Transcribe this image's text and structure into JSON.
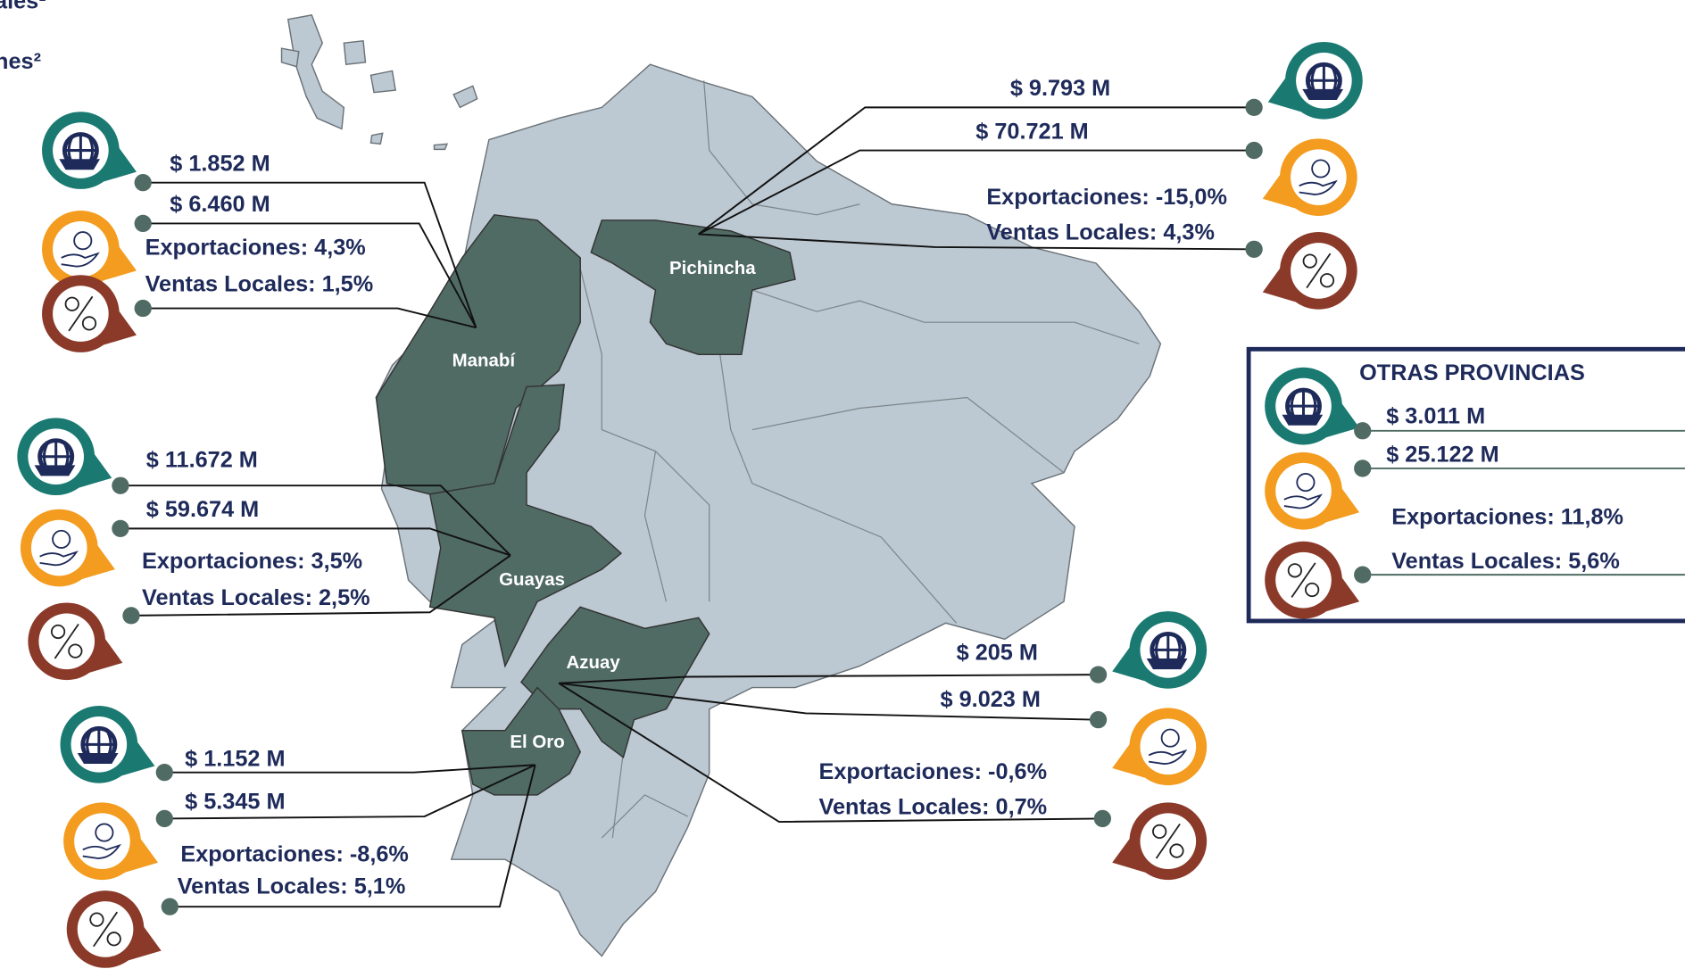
{
  "legend_fragments": [
    "ales¹",
    "nes²"
  ],
  "provinces": [
    {
      "name": "Manabí",
      "exportaciones": "$ 1.852 M",
      "ventas_locales": "$ 6.460 M",
      "var_exportaciones": "Exportaciones: 4,3%",
      "var_ventas_locales": "Ventas Locales: 1,5%"
    },
    {
      "name": "Pichincha",
      "exportaciones": "$ 9.793 M",
      "ventas_locales": "$  70.721 M",
      "var_exportaciones": "Exportaciones: -15,0%",
      "var_ventas_locales": "Ventas Locales: 4,3%"
    },
    {
      "name": "Guayas",
      "exportaciones": "$ 11.672 M",
      "ventas_locales": "$ 59.674 M",
      "var_exportaciones": "Exportaciones: 3,5%",
      "var_ventas_locales": "Ventas Locales: 2,5%"
    },
    {
      "name": "Azuay",
      "exportaciones": "$ 205 M",
      "ventas_locales": "$ 9.023 M",
      "var_exportaciones": "Exportaciones: -0,6%",
      "var_ventas_locales": "Ventas Locales: 0,7%"
    },
    {
      "name": "El Oro",
      "exportaciones": "$ 1.152 M",
      "ventas_locales": "$ 5.345 M",
      "var_exportaciones": "Exportaciones: -8,6%",
      "var_ventas_locales": "Ventas Locales: 5,1%"
    }
  ],
  "otras_provincias": {
    "title": "OTRAS PROVINCIAS",
    "exportaciones": "$ 3.011 M",
    "ventas_locales": "$ 25.122 M",
    "var_exportaciones": "Exportaciones: 11,8%",
    "var_ventas_locales": "Ventas Locales: 5,6%"
  }
}
